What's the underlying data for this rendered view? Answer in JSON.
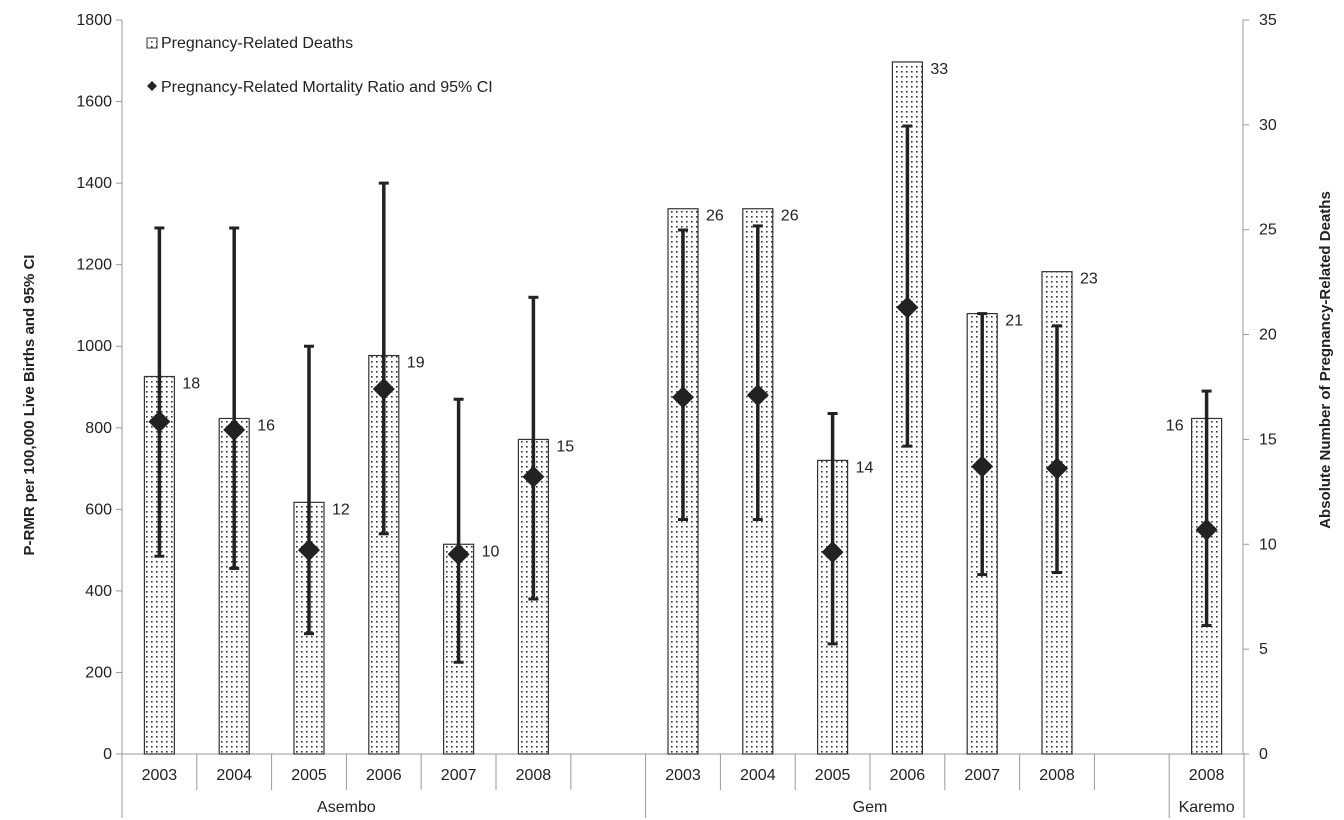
{
  "chart_data": {
    "type": "bar",
    "ylabel": "P-RMR per 100,000 Live Births and 95% CI",
    "y2label": "Absolute Number of Pregnancy-Related Deaths",
    "ylim": [
      0,
      1800
    ],
    "yticks": [
      0,
      200,
      400,
      600,
      800,
      1000,
      1200,
      1400,
      1600,
      1800
    ],
    "y2lim": [
      0,
      35
    ],
    "y2ticks": [
      0,
      5,
      10,
      15,
      20,
      25,
      30,
      35
    ],
    "legend": {
      "position": "top-left",
      "entries": [
        "Pregnancy-Related Deaths",
        "Pregnancy-Related Mortality Ratio and 95% CI"
      ]
    },
    "groups": [
      {
        "name": "Asembo",
        "categories": [
          "2003",
          "2004",
          "2005",
          "2006",
          "2007",
          "2008"
        ],
        "deaths": [
          18,
          16,
          12,
          19,
          10,
          15
        ],
        "ratio": [
          815,
          795,
          500,
          895,
          490,
          680
        ],
        "ci_low": [
          485,
          455,
          295,
          540,
          225,
          380
        ],
        "ci_high": [
          1290,
          1290,
          1000,
          1400,
          870,
          1120
        ]
      },
      {
        "name": "Gem",
        "categories": [
          "2003",
          "2004",
          "2005",
          "2006",
          "2007",
          "2008"
        ],
        "deaths": [
          26,
          26,
          14,
          33,
          21,
          23
        ],
        "ratio": [
          875,
          880,
          495,
          1095,
          705,
          700
        ],
        "ci_low": [
          575,
          575,
          270,
          755,
          440,
          445
        ],
        "ci_high": [
          1285,
          1295,
          835,
          1540,
          1080,
          1050
        ]
      },
      {
        "name": "Karemo",
        "categories": [
          "2008"
        ],
        "deaths": [
          16
        ],
        "ratio": [
          550
        ],
        "ci_low": [
          315
        ],
        "ci_high": [
          890
        ]
      }
    ]
  }
}
